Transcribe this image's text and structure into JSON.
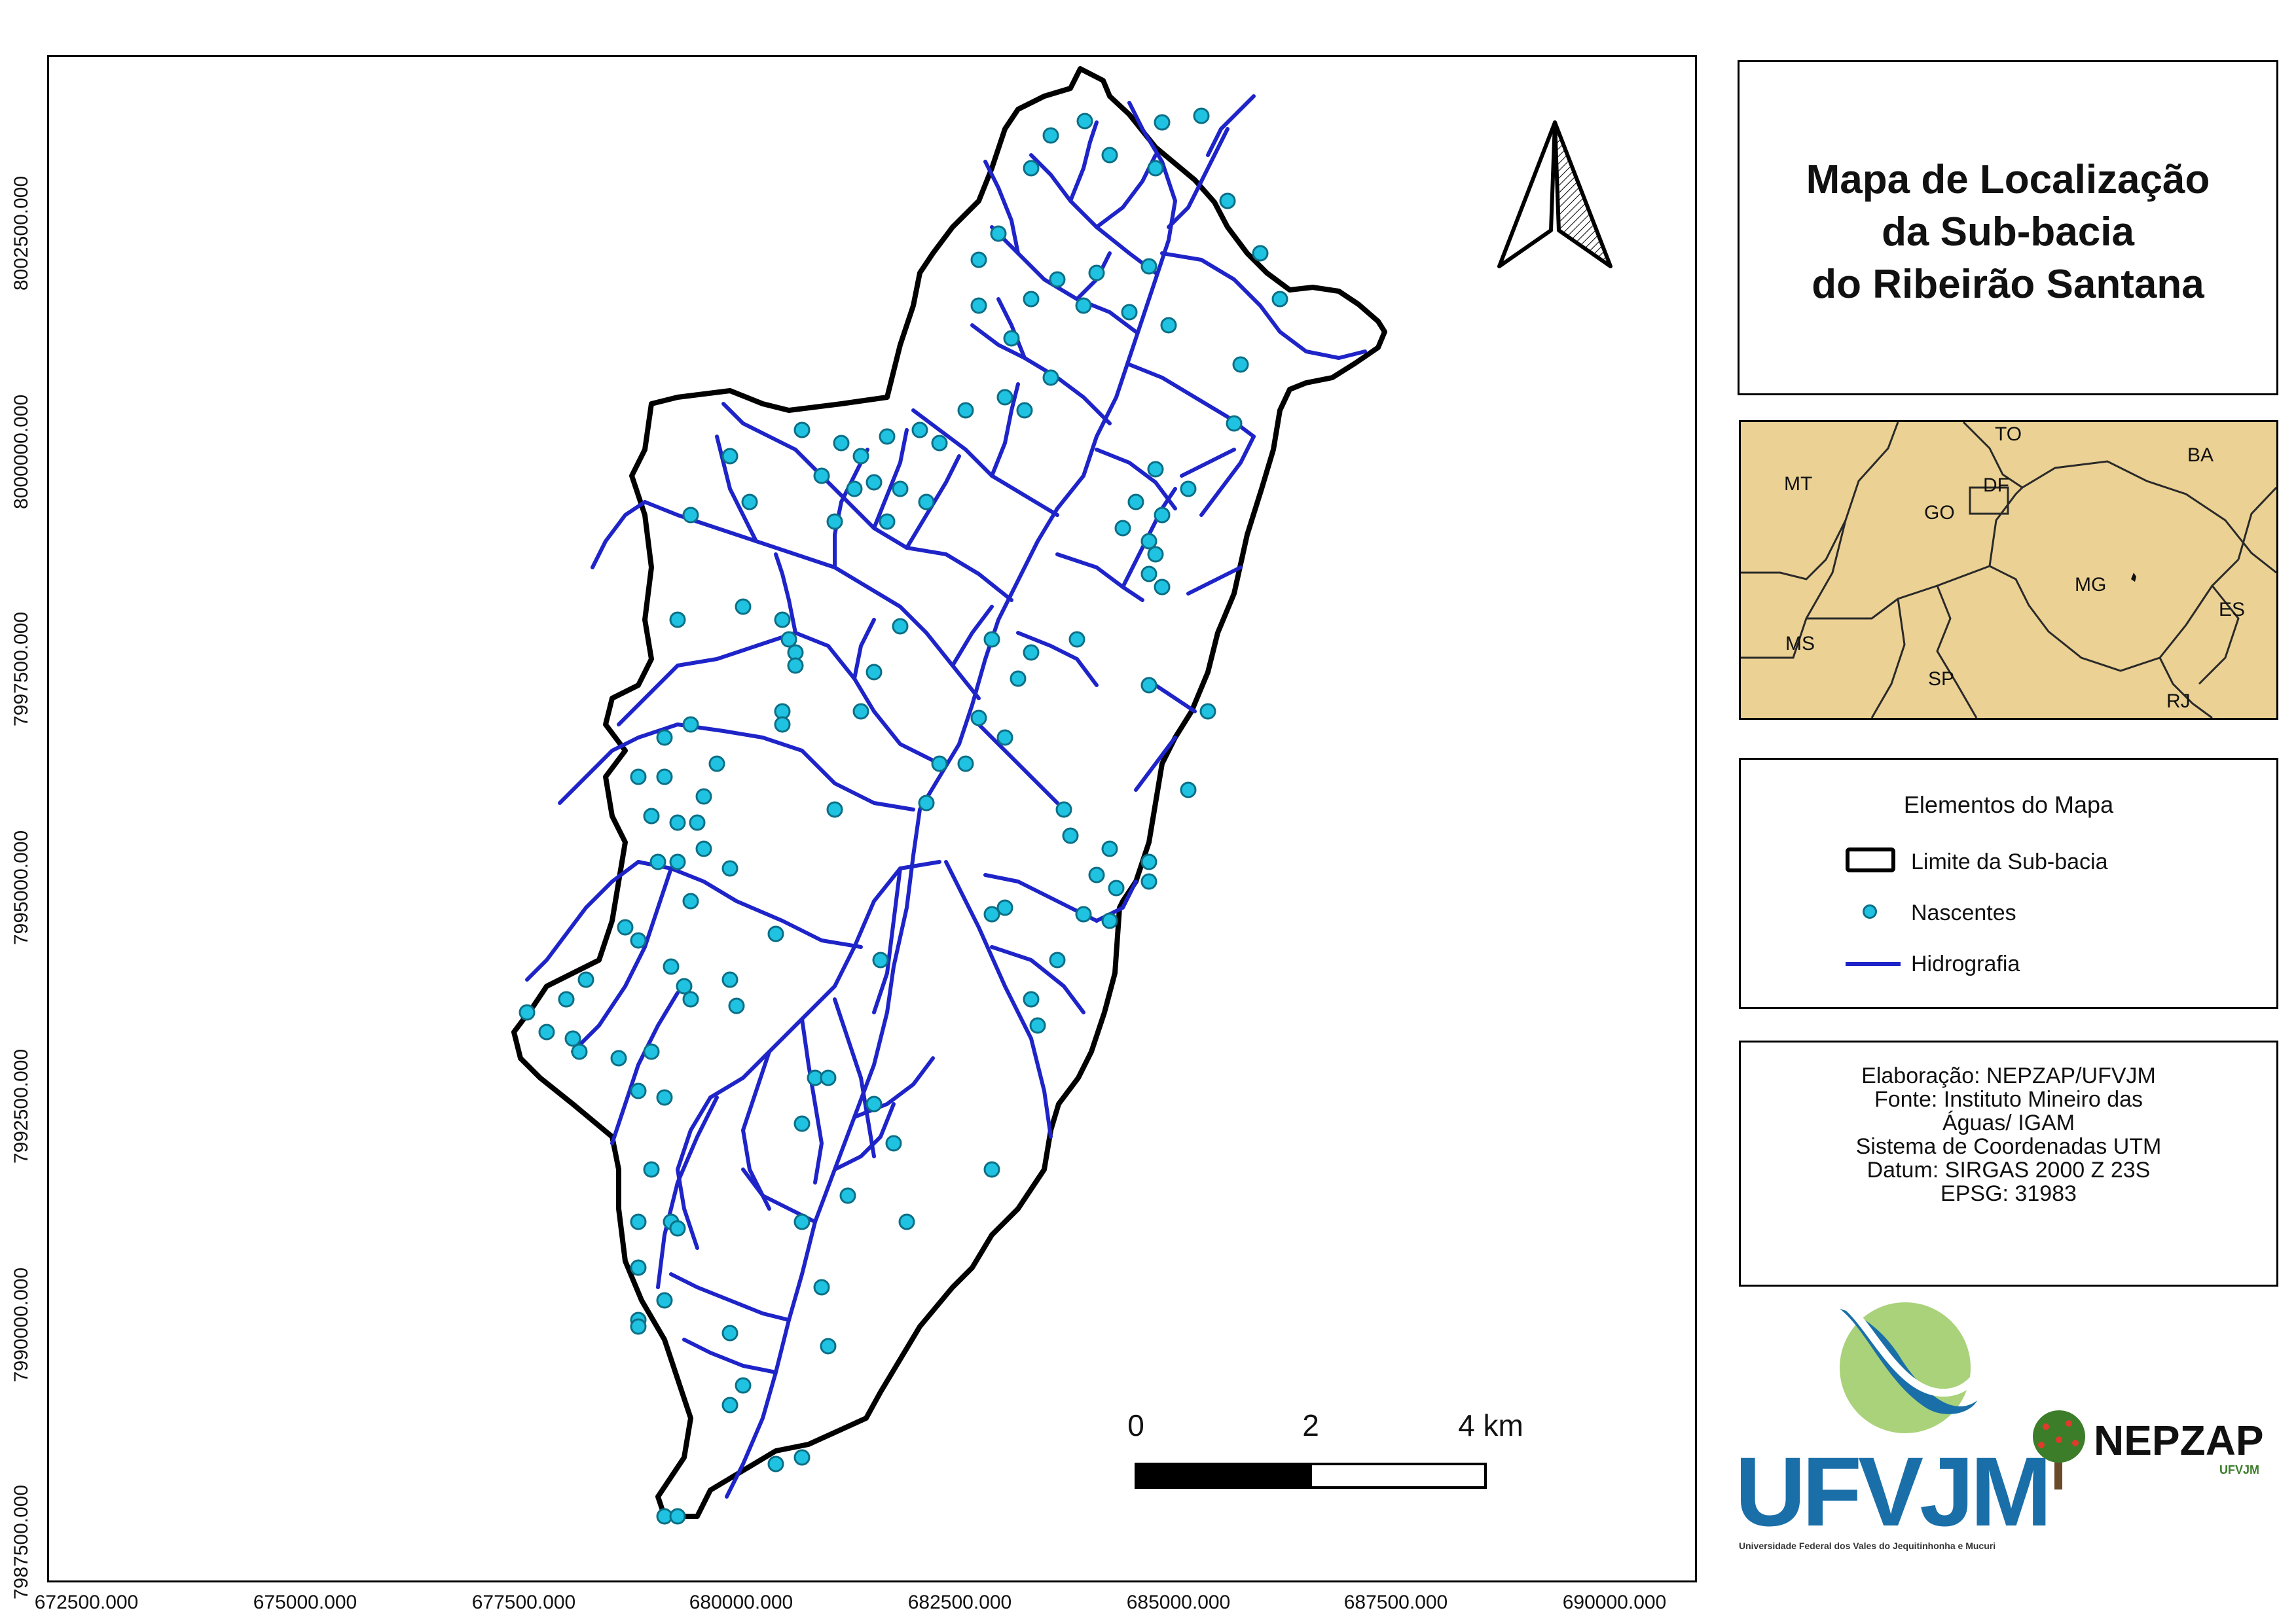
{
  "title": {
    "lines": [
      "Mapa de Localização",
      "da Sub-bacia",
      "do Ribeirão Santana"
    ]
  },
  "map": {
    "y_axis_labels": [
      "8002500.000",
      "8000000.000",
      "7997500.000",
      "7995000.000",
      "7992500.000",
      "7990000.000",
      "7987500.000"
    ],
    "x_axis_labels": [
      "672500.000",
      "675000.000",
      "677500.000",
      "680000.000",
      "682500.000",
      "685000.000",
      "687500.000",
      "690000.000"
    ],
    "north_arrow_icon": "north-arrow-icon",
    "colors": {
      "boundary": "#000000",
      "rivers": "#1e24c8",
      "springs_fill": "#1fc2e0",
      "springs_stroke": "#0b6f86"
    }
  },
  "scale_bar": {
    "labels": [
      "0",
      "2",
      "4 km"
    ]
  },
  "inset": {
    "states": [
      "TO",
      "BA",
      "MT",
      "DF",
      "GO",
      "MG",
      "ES",
      "MS",
      "SP",
      "RJ"
    ],
    "colors": {
      "land": "#ebd193",
      "border": "#2a2a2a"
    }
  },
  "legend": {
    "title": "Elementos do Mapa",
    "items": [
      {
        "label": "Limite da Sub-bacia"
      },
      {
        "label": "Nascentes"
      },
      {
        "label": "Hidrografia"
      }
    ]
  },
  "credits": {
    "lines": [
      "Elaboração: NEPZAP/UFVJM",
      "Fonte: Instituto Mineiro das",
      "Águas/ IGAM",
      "Sistema de Coordenadas UTM",
      "Datum: SIRGAS 2000 Z 23S",
      "EPSG: 31983"
    ]
  },
  "logos": {
    "ufvjm_text": "UFVJM",
    "ufvjm_subtitle": "Universidade Federal dos Vales do Jequitinhonha e Mucuri",
    "nepzap_text": "NEPZAP",
    "nepzap_subtitle": "UFVJM",
    "colors": {
      "ufvjm_blue": "#1a6fa8",
      "ufvjm_green": "#a9d27a",
      "nepzap_green": "#3c7d2a"
    }
  }
}
